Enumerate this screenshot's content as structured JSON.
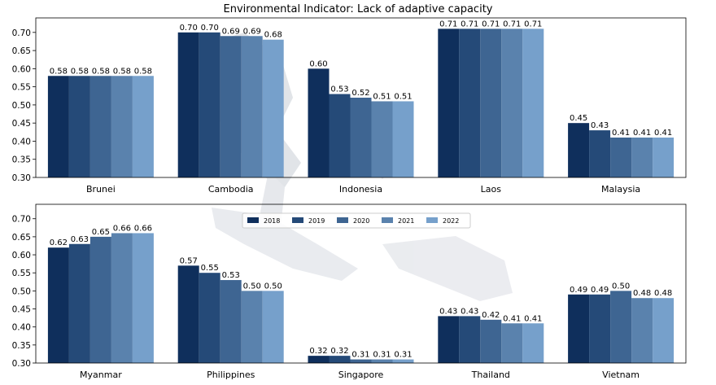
{
  "chart_data": {
    "type": "bar",
    "title": "Environmental Indicator: Lack of adaptive capacity",
    "years": [
      "2018",
      "2019",
      "2020",
      "2021",
      "2022"
    ],
    "colors": [
      "#0f2f5c",
      "#254a78",
      "#3e6592",
      "#5a82ad",
      "#76a0cb"
    ],
    "legend_position": "center",
    "ylim": [
      0.3,
      0.74
    ],
    "yticks": [
      "0.30",
      "0.35",
      "0.40",
      "0.45",
      "0.50",
      "0.55",
      "0.60",
      "0.65",
      "0.70"
    ],
    "grid": false,
    "panels": [
      {
        "categories": [
          "Brunei",
          "Cambodia",
          "Indonesia",
          "Laos",
          "Malaysia"
        ],
        "series": [
          {
            "name": "2018",
            "values": [
              0.58,
              0.7,
              0.6,
              0.71,
              0.45
            ]
          },
          {
            "name": "2019",
            "values": [
              0.58,
              0.7,
              0.53,
              0.71,
              0.43
            ]
          },
          {
            "name": "2020",
            "values": [
              0.58,
              0.69,
              0.52,
              0.71,
              0.41
            ]
          },
          {
            "name": "2021",
            "values": [
              0.58,
              0.69,
              0.51,
              0.71,
              0.41
            ]
          },
          {
            "name": "2022",
            "values": [
              0.58,
              0.68,
              0.51,
              0.71,
              0.41
            ]
          }
        ]
      },
      {
        "categories": [
          "Myanmar",
          "Philippines",
          "Singapore",
          "Thailand",
          "Vietnam"
        ],
        "series": [
          {
            "name": "2018",
            "values": [
              0.62,
              0.57,
              0.32,
              0.43,
              0.49
            ]
          },
          {
            "name": "2019",
            "values": [
              0.63,
              0.55,
              0.32,
              0.43,
              0.49
            ]
          },
          {
            "name": "2020",
            "values": [
              0.65,
              0.53,
              0.31,
              0.42,
              0.5
            ]
          },
          {
            "name": "2021",
            "values": [
              0.66,
              0.5,
              0.31,
              0.41,
              0.48
            ]
          },
          {
            "name": "2022",
            "values": [
              0.66,
              0.5,
              0.31,
              0.41,
              0.48
            ]
          }
        ]
      }
    ]
  }
}
